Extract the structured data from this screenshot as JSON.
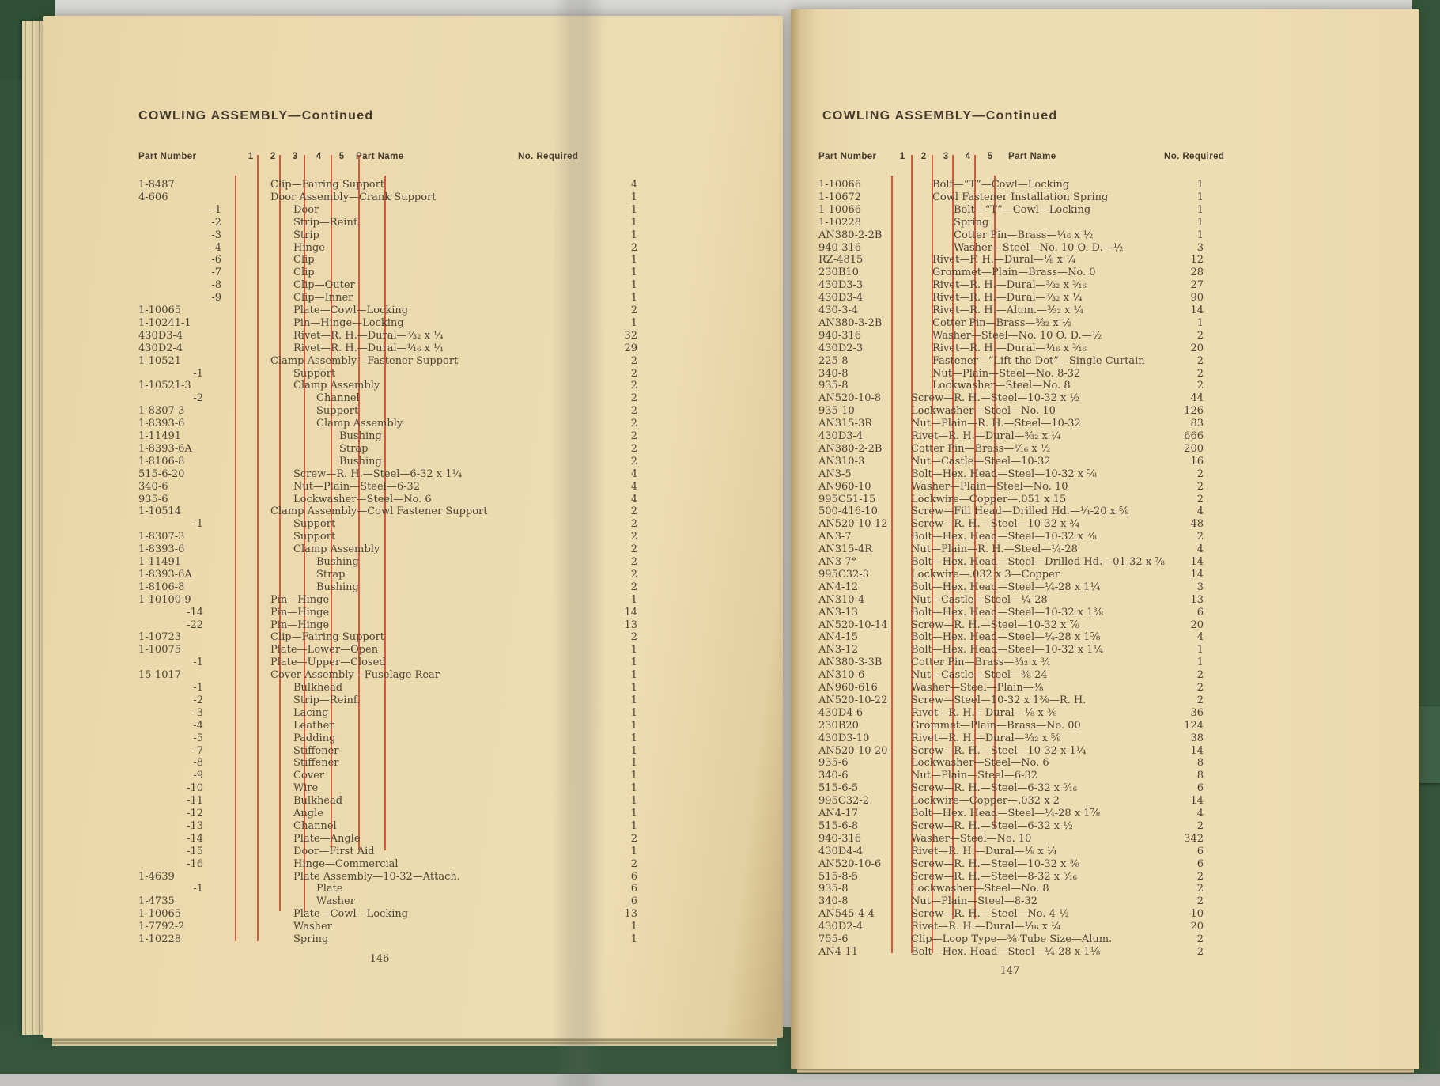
{
  "colors": {
    "paper": "#eedcb2",
    "cover_green": "#33543a",
    "indenture_rule_red": "#ce492e",
    "body_ink": "#4e4436",
    "header_ink": "#473e2f"
  },
  "left_page": {
    "title": "COWLING ASSEMBLY—Continued",
    "page_number": "146",
    "headers": {
      "part_number": "Part Number",
      "indenture_cols": [
        "1",
        "2",
        "3",
        "4",
        "5"
      ],
      "part_name": "Part Name",
      "no_required": "No. Required"
    },
    "rows": [
      {
        "pn": "1-8487",
        "in": 0,
        "nm": "Clip—Fairing Support",
        "q": "4"
      },
      {
        "pn": "4-606",
        "in": 0,
        "nm": "Door Assembly—Crank Support",
        "q": "1"
      },
      {
        "pn": "-1",
        "pc": 1,
        "in": 1,
        "nm": "Door",
        "q": "1"
      },
      {
        "pn": "-2",
        "pc": 1,
        "in": 1,
        "nm": "Strip—Reinf.",
        "q": "1"
      },
      {
        "pn": "-3",
        "pc": 1,
        "in": 1,
        "nm": "Strip",
        "q": "1"
      },
      {
        "pn": "-4",
        "pc": 1,
        "in": 1,
        "nm": "Hinge",
        "q": "2"
      },
      {
        "pn": "-6",
        "pc": 1,
        "in": 1,
        "nm": "Clip",
        "q": "1"
      },
      {
        "pn": "-7",
        "pc": 1,
        "in": 1,
        "nm": "Clip",
        "q": "1"
      },
      {
        "pn": "-8",
        "pc": 1,
        "in": 1,
        "nm": "Clip—Outer",
        "q": "1"
      },
      {
        "pn": "-9",
        "pc": 1,
        "in": 1,
        "nm": "Clip—Inner",
        "q": "1"
      },
      {
        "pn": "1-10065",
        "in": 1,
        "nm": "Plate—Cowl—Locking",
        "q": "2"
      },
      {
        "pn": "1-10241-1",
        "in": 1,
        "nm": "Pin—Hinge—Locking",
        "q": "1"
      },
      {
        "pn": "430D3-4",
        "in": 1,
        "nm": "Rivet—R. H.—Dural—³⁄₃₂ x ¼",
        "q": "32"
      },
      {
        "pn": "430D2-4",
        "in": 1,
        "nm": "Rivet—R. H.—Dural—¹⁄₁₆ x ¼",
        "q": "29"
      },
      {
        "pn": "1-10521",
        "in": 0,
        "nm": "Clamp Assembly—Fastener Support",
        "q": "2"
      },
      {
        "pn": "-1",
        "pc": 2,
        "in": 1,
        "nm": "Support",
        "q": "2"
      },
      {
        "pn": "1-10521-3",
        "in": 1,
        "nm": "Clamp Assembly",
        "q": "2"
      },
      {
        "pn": "-2",
        "pc": 2,
        "in": 2,
        "nm": "Channel",
        "q": "2"
      },
      {
        "pn": "1-8307-3",
        "in": 2,
        "nm": "Support",
        "q": "2"
      },
      {
        "pn": "1-8393-6",
        "in": 2,
        "nm": "Clamp Assembly",
        "q": "2"
      },
      {
        "pn": "1-11491",
        "in": 3,
        "nm": "Bushing",
        "q": "2"
      },
      {
        "pn": "1-8393-6A",
        "in": 3,
        "nm": "Strap",
        "q": "2"
      },
      {
        "pn": "1-8106-8",
        "in": 3,
        "nm": "Bushing",
        "q": "2"
      },
      {
        "pn": "515-6-20",
        "in": 1,
        "nm": "Screw—R. H.—Steel—6-32 x 1¼",
        "q": "4"
      },
      {
        "pn": "340-6",
        "in": 1,
        "nm": "Nut—Plain—Steel—6-32",
        "q": "4"
      },
      {
        "pn": "935-6",
        "in": 1,
        "nm": "Lockwasher—Steel—No. 6",
        "q": "4"
      },
      {
        "pn": "1-10514",
        "in": 0,
        "nm": "Clamp Assembly—Cowl Fastener Support",
        "q": "2"
      },
      {
        "pn": "-1",
        "pc": 2,
        "in": 1,
        "nm": "Support",
        "q": "2"
      },
      {
        "pn": "1-8307-3",
        "in": 1,
        "nm": "Support",
        "q": "2"
      },
      {
        "pn": "1-8393-6",
        "in": 1,
        "nm": "Clamp Assembly",
        "q": "2"
      },
      {
        "pn": "1-11491",
        "in": 2,
        "nm": "Bushing",
        "q": "2"
      },
      {
        "pn": "1-8393-6A",
        "in": 2,
        "nm": "Strap",
        "q": "2"
      },
      {
        "pn": "1-8106-8",
        "in": 2,
        "nm": "Bushing",
        "q": "2"
      },
      {
        "pn": "1-10100-9",
        "in": 0,
        "nm": "Pin—Hinge",
        "q": "1"
      },
      {
        "pn": "-14",
        "pc": 2,
        "in": 0,
        "nm": "Pin—Hinge",
        "q": "14"
      },
      {
        "pn": "-22",
        "pc": 2,
        "in": 0,
        "nm": "Pin—Hinge",
        "q": "13"
      },
      {
        "pn": "1-10723",
        "in": 0,
        "nm": "Clip—Fairing Support",
        "q": "2"
      },
      {
        "pn": "1-10075",
        "in": 0,
        "nm": "Plate—Lower—Open",
        "q": "1"
      },
      {
        "pn": "-1",
        "pc": 2,
        "in": 0,
        "nm": "Plate—Upper—Closed",
        "q": "1"
      },
      {
        "pn": "15-1017",
        "in": 0,
        "nm": "Cover Assembly—Fuselage Rear",
        "q": "1"
      },
      {
        "pn": "-1",
        "pc": 2,
        "in": 1,
        "nm": "Bulkhead",
        "q": "1"
      },
      {
        "pn": "-2",
        "pc": 2,
        "in": 1,
        "nm": "Strip—Reinf.",
        "q": "1"
      },
      {
        "pn": "-3",
        "pc": 2,
        "in": 1,
        "nm": "Lacing",
        "q": "1"
      },
      {
        "pn": "-4",
        "pc": 2,
        "in": 1,
        "nm": "Leather",
        "q": "1"
      },
      {
        "pn": "-5",
        "pc": 2,
        "in": 1,
        "nm": "Padding",
        "q": "1"
      },
      {
        "pn": "-7",
        "pc": 2,
        "in": 1,
        "nm": "Stiffener",
        "q": "1"
      },
      {
        "pn": "-8",
        "pc": 2,
        "in": 1,
        "nm": "Stiffener",
        "q": "1"
      },
      {
        "pn": "-9",
        "pc": 2,
        "in": 1,
        "nm": "Cover",
        "q": "1"
      },
      {
        "pn": "-10",
        "pc": 2,
        "in": 1,
        "nm": "Wire",
        "q": "1"
      },
      {
        "pn": "-11",
        "pc": 2,
        "in": 1,
        "nm": "Bulkhead",
        "q": "1"
      },
      {
        "pn": "-12",
        "pc": 2,
        "in": 1,
        "nm": "Angle",
        "q": "1"
      },
      {
        "pn": "-13",
        "pc": 2,
        "in": 1,
        "nm": "Channel",
        "q": "1"
      },
      {
        "pn": "-14",
        "pc": 2,
        "in": 1,
        "nm": "Plate—Angle",
        "q": "2"
      },
      {
        "pn": "-15",
        "pc": 2,
        "in": 1,
        "nm": "Door—First Aid",
        "q": "1"
      },
      {
        "pn": "-16",
        "pc": 2,
        "in": 1,
        "nm": "Hinge—Commercial",
        "q": "2"
      },
      {
        "pn": "1-4639",
        "in": 1,
        "nm": "Plate Assembly—10-32—Attach.",
        "q": "6"
      },
      {
        "pn": "-1",
        "pc": 2,
        "in": 2,
        "nm": "Plate",
        "q": "6"
      },
      {
        "pn": "1-4735",
        "in": 2,
        "nm": "Washer",
        "q": "6"
      },
      {
        "pn": "1-10065",
        "in": 1,
        "nm": "Plate—Cowl—Locking",
        "q": "13"
      },
      {
        "pn": "1-7792-2",
        "in": 1,
        "nm": "Washer",
        "q": "1"
      },
      {
        "pn": "1-10228",
        "in": 1,
        "nm": "Spring",
        "q": "1"
      }
    ]
  },
  "right_page": {
    "title": "COWLING ASSEMBLY—Continued",
    "page_number": "147",
    "headers": {
      "part_number": "Part Number",
      "indenture_cols": [
        "1",
        "2",
        "3",
        "4",
        "5"
      ],
      "part_name": "Part Name",
      "no_required": "No. Required"
    },
    "rows": [
      {
        "pn": "1-10066",
        "in": 1,
        "nm": "Bolt—“T”—Cowl—Locking",
        "q": "1"
      },
      {
        "pn": "1-10672",
        "in": 1,
        "nm": "Cowl Fastener Installation Spring",
        "q": "1"
      },
      {
        "pn": "1-10066",
        "in": 2,
        "nm": "Bolt—“T”—Cowl—Locking",
        "q": "1"
      },
      {
        "pn": "1-10228",
        "in": 2,
        "nm": "Spring",
        "q": "1"
      },
      {
        "pn": "AN380-2-2B",
        "in": 2,
        "nm": "Cotter Pin—Brass—¹⁄₁₆ x ½",
        "q": "1"
      },
      {
        "pn": "940-316",
        "in": 2,
        "nm": "Washer—Steel—No. 10 O. D.—½",
        "q": "3"
      },
      {
        "pn": "RZ-4815",
        "in": 1,
        "nm": "Rivet—F. H.—Dural—⅛ x ¼",
        "q": "12"
      },
      {
        "pn": "230B10",
        "in": 1,
        "nm": "Grommet—Plain—Brass—No. 0",
        "q": "28"
      },
      {
        "pn": "430D3-3",
        "in": 1,
        "nm": "Rivet—R. H.—Dural—³⁄₃₂ x ³⁄₁₆",
        "q": "27"
      },
      {
        "pn": "430D3-4",
        "in": 1,
        "nm": "Rivet—R. H.—Dural—³⁄₃₂ x ¼",
        "q": "90"
      },
      {
        "pn": "430-3-4",
        "in": 1,
        "nm": "Rivet—R. H.—Alum.—³⁄₃₂ x ¼",
        "q": "14"
      },
      {
        "pn": "AN380-3-2B",
        "in": 1,
        "nm": "Cotter Pin—Brass—³⁄₃₂ x ½",
        "q": "1"
      },
      {
        "pn": "940-316",
        "in": 1,
        "nm": "Washer—Steel—No. 10 O. D.—½",
        "q": "2"
      },
      {
        "pn": "430D2-3",
        "in": 1,
        "nm": "Rivet—R. H.—Dural—¹⁄₁₆ x ³⁄₁₆",
        "q": "20"
      },
      {
        "pn": "225-8",
        "in": 1,
        "nm": "Fastener—“Lift the Dot”—Single Curtain",
        "q": "2"
      },
      {
        "pn": "340-8",
        "in": 1,
        "nm": "Nut—Plain—Steel—No. 8-32",
        "q": "2"
      },
      {
        "pn": "935-8",
        "in": 1,
        "nm": "Lockwasher—Steel—No. 8",
        "q": "2"
      },
      {
        "pn": "AN520-10-8",
        "in": 0,
        "nm": "Screw—R. H.—Steel—10-32 x ½",
        "q": "44"
      },
      {
        "pn": "935-10",
        "in": 0,
        "nm": "Lockwasher—Steel—No. 10",
        "q": "126"
      },
      {
        "pn": "AN315-3R",
        "in": 0,
        "nm": "Nut—Plain—R. H.—Steel—10-32",
        "q": "83"
      },
      {
        "pn": "430D3-4",
        "in": 0,
        "nm": "Rivet—R. H.—Dural—³⁄₃₂ x ¼",
        "q": "666"
      },
      {
        "pn": "AN380-2-2B",
        "in": 0,
        "nm": "Cotter Pin—Brass—¹⁄₁₆ x ½",
        "q": "200"
      },
      {
        "pn": "AN310-3",
        "in": 0,
        "nm": "Nut—Castle—Steel—10-32",
        "q": "16"
      },
      {
        "pn": "AN3-5",
        "in": 0,
        "nm": "Bolt—Hex. Head—Steel—10-32 x ⅝",
        "q": "2"
      },
      {
        "pn": "AN960-10",
        "in": 0,
        "nm": "Washer—Plain—Steel—No. 10",
        "q": "2"
      },
      {
        "pn": "995C51-15",
        "in": 0,
        "nm": "Lockwire—Copper—.051 x 15",
        "q": "2"
      },
      {
        "pn": "500-416-10",
        "in": 0,
        "nm": "Screw—Fill Head—Drilled Hd.—¼-20 x ⅝",
        "q": "4"
      },
      {
        "pn": "AN520-10-12",
        "in": 0,
        "nm": "Screw—R. H.—Steel—10-32 x ¾",
        "q": "48"
      },
      {
        "pn": "AN3-7",
        "in": 0,
        "nm": "Bolt—Hex. Head—Steel—10-32 x ⅞",
        "q": "2"
      },
      {
        "pn": "AN315-4R",
        "in": 0,
        "nm": "Nut—Plain—R. H.—Steel—¼-28",
        "q": "4"
      },
      {
        "pn": "AN3-7°",
        "in": 0,
        "nm": "Bolt—Hex. Head—Steel—Drilled Hd.—01-32 x ⅞",
        "q": "14"
      },
      {
        "pn": "995C32-3",
        "in": 0,
        "nm": "Lockwire—.032 x 3—Copper",
        "q": "14"
      },
      {
        "pn": "AN4-12",
        "in": 0,
        "nm": "Bolt—Hex. Head—Steel—¼-28 x 1¼",
        "q": "3"
      },
      {
        "pn": "AN310-4",
        "in": 0,
        "nm": "Nut—Castle—Steel—¼-28",
        "q": "13"
      },
      {
        "pn": "AN3-13",
        "in": 0,
        "nm": "Bolt—Hex. Head—Steel—10-32 x 1⅜",
        "q": "6"
      },
      {
        "pn": "AN520-10-14",
        "in": 0,
        "nm": "Screw—R. H.—Steel—10-32 x ⅞",
        "q": "20"
      },
      {
        "pn": "AN4-15",
        "in": 0,
        "nm": "Bolt—Hex. Head—Steel—¼-28 x 1⅝",
        "q": "4"
      },
      {
        "pn": "AN3-12",
        "in": 0,
        "nm": "Bolt—Hex. Head—Steel—10-32 x 1¼",
        "q": "1"
      },
      {
        "pn": "AN380-3-3B",
        "in": 0,
        "nm": "Cotter Pin—Brass—³⁄₃₂ x ¾",
        "q": "1"
      },
      {
        "pn": "AN310-6",
        "in": 0,
        "nm": "Nut—Castle—Steel—⅜-24",
        "q": "2"
      },
      {
        "pn": "AN960-616",
        "in": 0,
        "nm": "Washer—Steel—Plain—⅜",
        "q": "2"
      },
      {
        "pn": "AN520-10-22",
        "in": 0,
        "nm": "Screw—Steel—10-32 x 1⅜—R. H.",
        "q": "2"
      },
      {
        "pn": "430D4-6",
        "in": 0,
        "nm": "Rivet—R. H.—Dural—⅛ x ⅜",
        "q": "36"
      },
      {
        "pn": "230B20",
        "in": 0,
        "nm": "Grommet—Plain—Brass—No. 00",
        "q": "124"
      },
      {
        "pn": "430D3-10",
        "in": 0,
        "nm": "Rivet—R. H.—Dural—³⁄₃₂ x ⅝",
        "q": "38"
      },
      {
        "pn": "AN520-10-20",
        "in": 0,
        "nm": "Screw—R. H.—Steel—10-32 x 1¼",
        "q": "14"
      },
      {
        "pn": "935-6",
        "in": 0,
        "nm": "Lockwasher—Steel—No. 6",
        "q": "8"
      },
      {
        "pn": "340-6",
        "in": 0,
        "nm": "Nut—Plain—Steel—6-32",
        "q": "8"
      },
      {
        "pn": "515-6-5",
        "in": 0,
        "nm": "Screw—R. H.—Steel—6-32 x ⁵⁄₁₆",
        "q": "6"
      },
      {
        "pn": "995C32-2",
        "in": 0,
        "nm": "Lockwire—Copper—.032 x 2",
        "q": "14"
      },
      {
        "pn": "AN4-17",
        "in": 0,
        "nm": "Bolt—Hex. Head—Steel—¼-28 x 1⅞",
        "q": "4"
      },
      {
        "pn": "515-6-8",
        "in": 0,
        "nm": "Screw—R. H.—Steel—6-32 x ½",
        "q": "2"
      },
      {
        "pn": "940-316",
        "in": 0,
        "nm": "Washer—Steel—No. 10",
        "q": "342"
      },
      {
        "pn": "430D4-4",
        "in": 0,
        "nm": "Rivet—R. H.—Dural—⅛ x ¼",
        "q": "6"
      },
      {
        "pn": "AN520-10-6",
        "in": 0,
        "nm": "Screw—R. H.—Steel—10-32 x ⅜",
        "q": "6"
      },
      {
        "pn": "515-8-5",
        "in": 0,
        "nm": "Screw—R. H.—Steel—8-32 x ⁵⁄₁₆",
        "q": "2"
      },
      {
        "pn": "935-8",
        "in": 0,
        "nm": "Lockwasher—Steel—No. 8",
        "q": "2"
      },
      {
        "pn": "340-8",
        "in": 0,
        "nm": "Nut—Plain—Steel—8-32",
        "q": "2"
      },
      {
        "pn": "AN545-4-4",
        "in": 0,
        "nm": "Screw—R. H.—Steel—No. 4-½",
        "q": "10"
      },
      {
        "pn": "430D2-4",
        "in": 0,
        "nm": "Rivet—R. H.—Dural—¹⁄₁₆ x ¼",
        "q": "20"
      },
      {
        "pn": "755-6",
        "in": 0,
        "nm": "Clip—Loop Type—⅜ Tube Size—Alum.",
        "q": "2"
      },
      {
        "pn": "AN4-11",
        "in": 0,
        "nm": "Bolt—Hex. Head—Steel—¼-28 x 1⅛",
        "q": "2"
      }
    ]
  }
}
